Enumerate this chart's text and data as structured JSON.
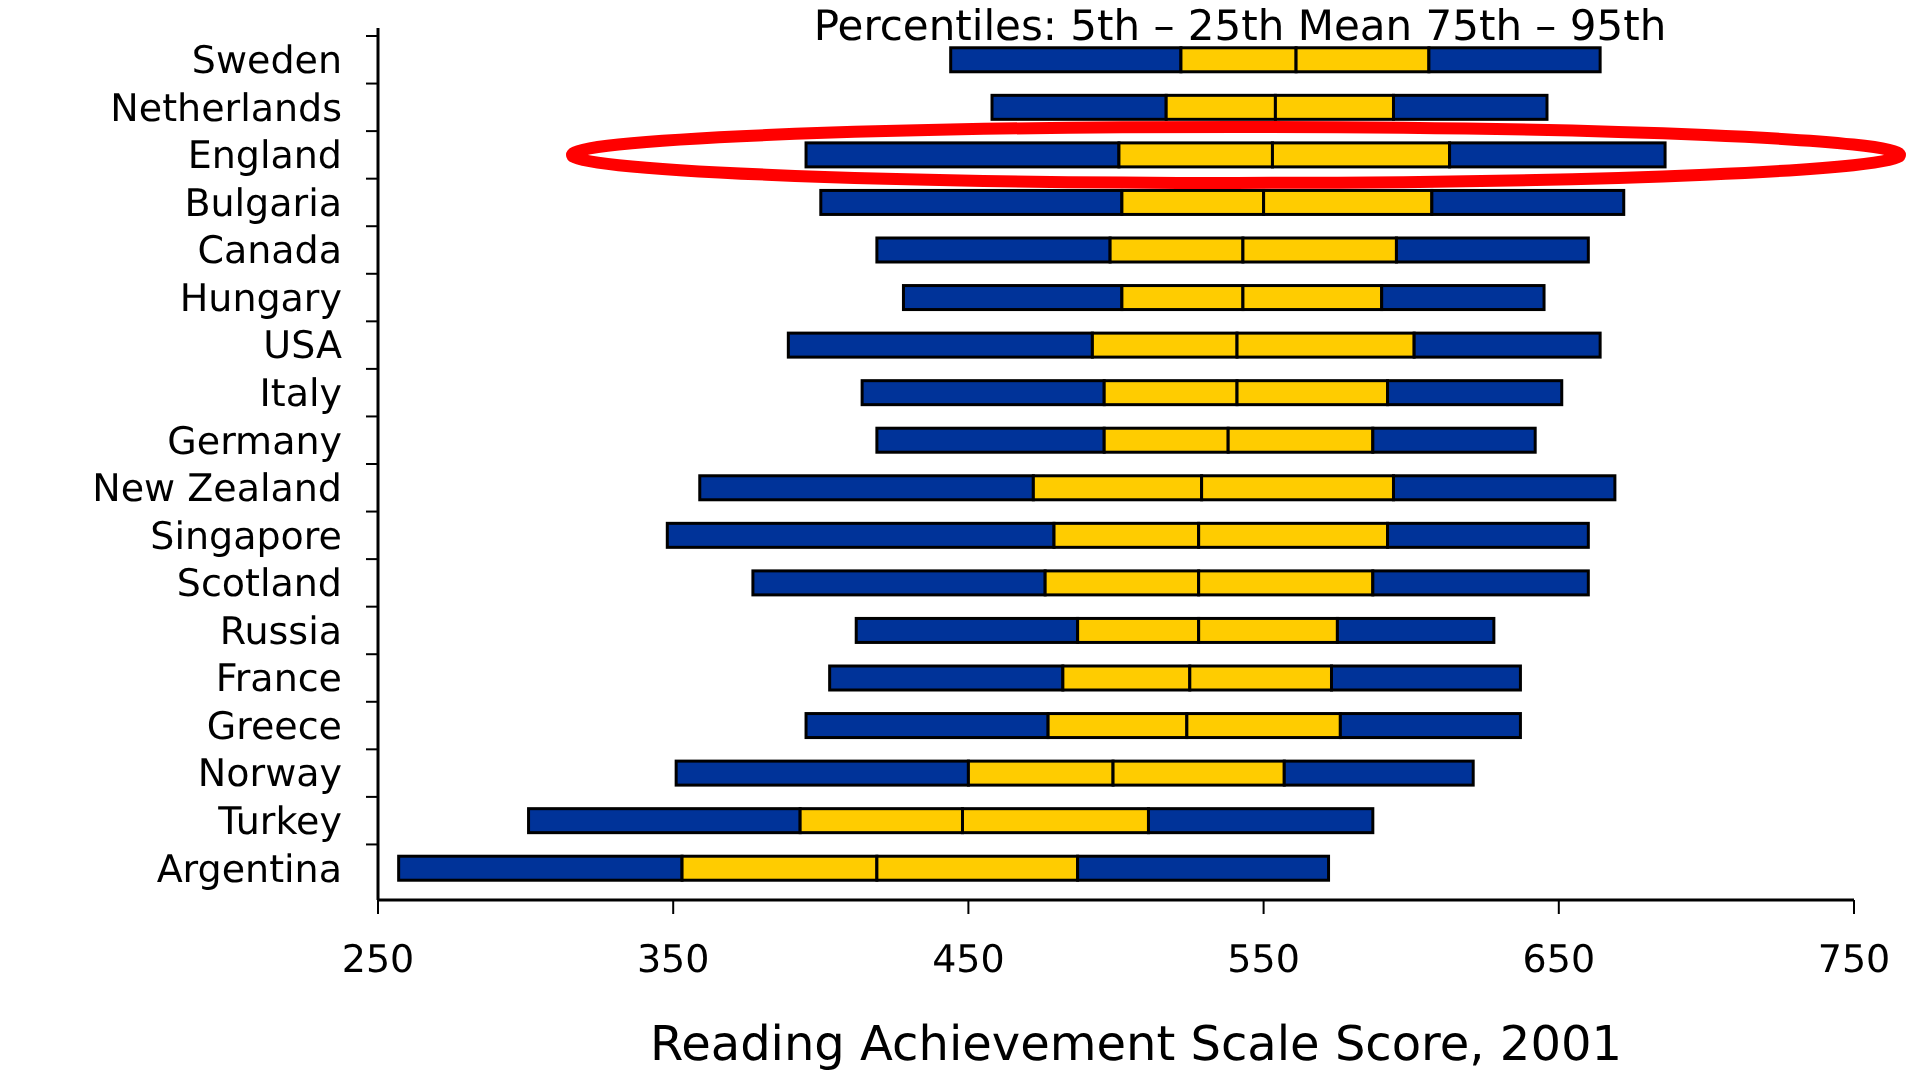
{
  "chart_data": {
    "type": "bar",
    "orientation": "horizontal",
    "title": "Percentiles: 5th – 25th Mean 75th – 95th",
    "xlabel": "Reading Achievement Scale Score, 2001",
    "categories": [
      "Sweden",
      "Netherlands",
      "England",
      "Bulgaria",
      "Canada",
      "Hungary",
      "USA",
      "Italy",
      "Germany",
      "New Zealand",
      "Singapore",
      "Scotland",
      "Russia",
      "France",
      "Greece",
      "Norway",
      "Turkey",
      "Argentina"
    ],
    "xlim": [
      250,
      750
    ],
    "xticks": [
      250,
      350,
      450,
      550,
      650,
      750
    ],
    "series": [
      {
        "color": "#003399",
        "base": [
          444,
          458,
          395,
          400,
          419,
          428,
          389,
          414,
          419,
          359,
          348,
          377,
          412,
          403,
          395,
          351,
          301,
          257
        ],
        "values": [
          78,
          59,
          106,
          102,
          79,
          74,
          103,
          82,
          77,
          113,
          131,
          99,
          75,
          79,
          82,
          99,
          92,
          96
        ]
      },
      {
        "color": "#ffcc00",
        "base": [
          522,
          517,
          501,
          502,
          498,
          502,
          492,
          496,
          496,
          472,
          479,
          476,
          487,
          482,
          477,
          450,
          393,
          353
        ],
        "values": [
          39,
          37,
          52,
          48,
          45,
          41,
          49,
          45,
          42,
          57,
          49,
          52,
          41,
          43,
          47,
          49,
          55,
          66
        ]
      },
      {
        "color": "#ffcc00",
        "base": [
          561,
          554,
          553,
          550,
          543,
          543,
          541,
          541,
          538,
          529,
          528,
          528,
          528,
          525,
          524,
          499,
          448,
          419
        ],
        "values": [
          45,
          40,
          60,
          57,
          52,
          47,
          60,
          51,
          49,
          65,
          64,
          59,
          47,
          48,
          52,
          58,
          63,
          68
        ]
      },
      {
        "color": "#003399",
        "base": [
          606,
          594,
          613,
          607,
          595,
          590,
          601,
          592,
          587,
          594,
          592,
          587,
          575,
          573,
          576,
          557,
          511,
          487
        ],
        "values": [
          58,
          52,
          73,
          65,
          65,
          55,
          63,
          59,
          55,
          75,
          68,
          73,
          53,
          64,
          61,
          64,
          76,
          85
        ]
      }
    ]
  }
}
